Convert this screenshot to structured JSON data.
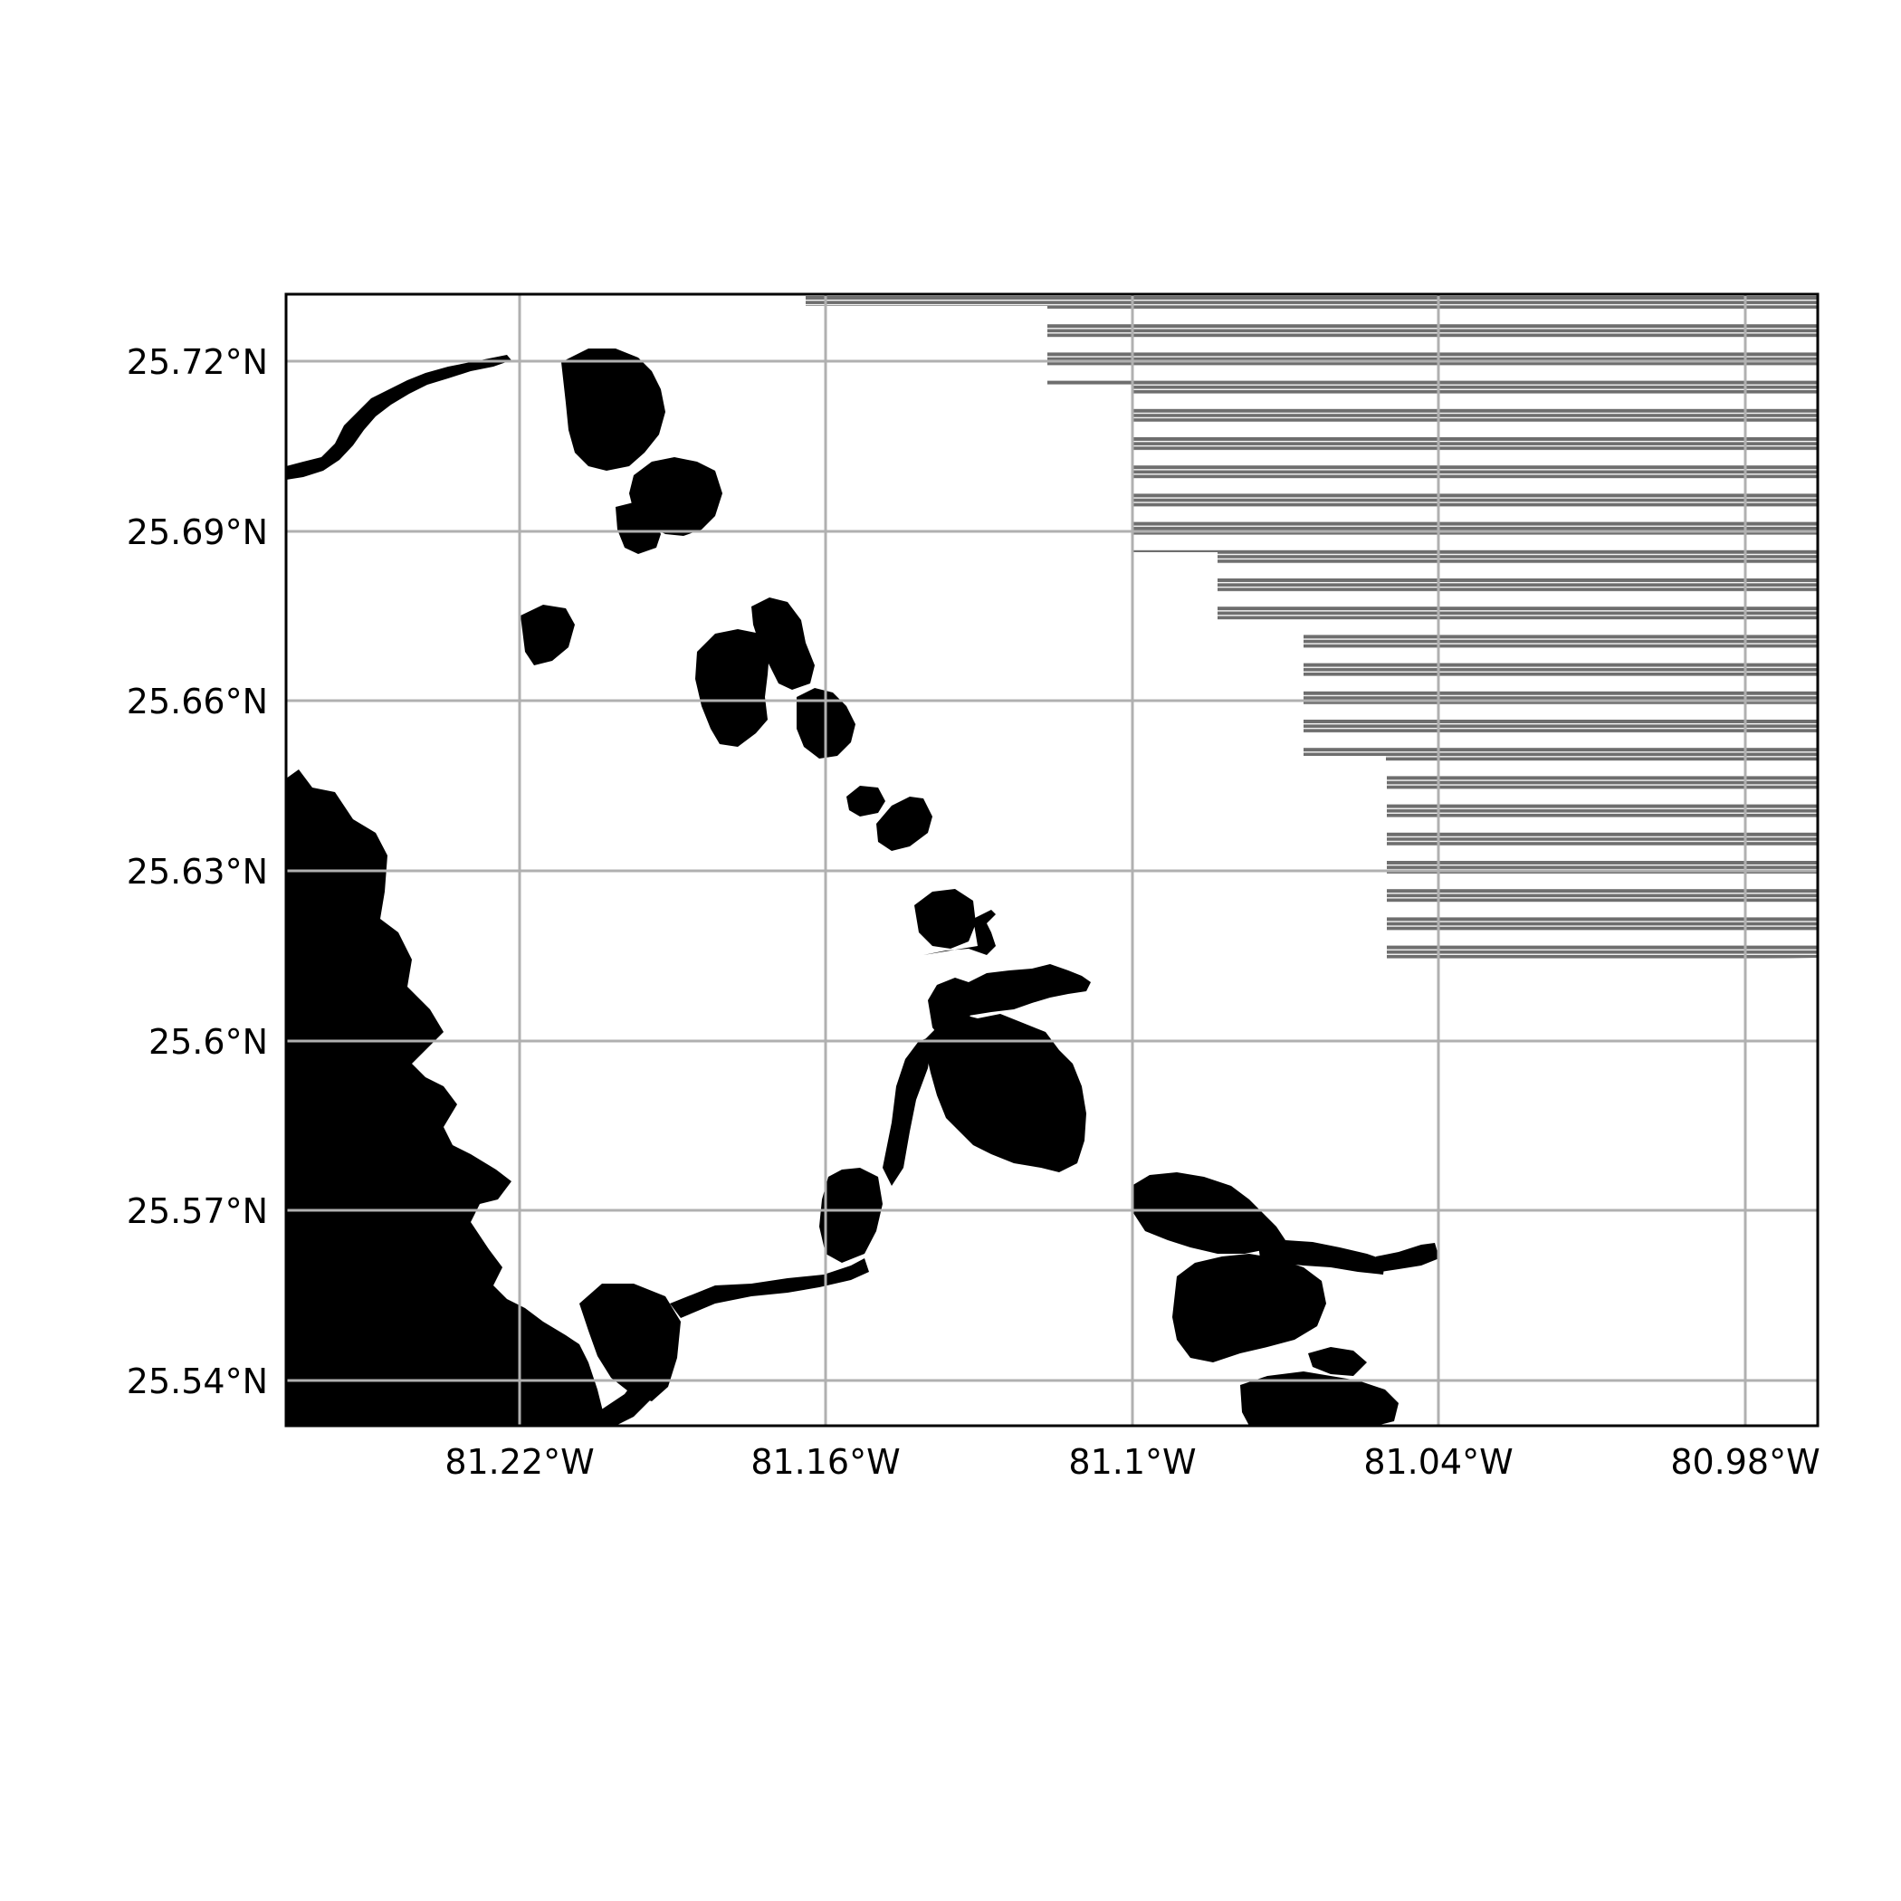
{
  "map": {
    "type": "map",
    "projection": "PlateCarree",
    "extent": {
      "lon_min": -81.2583,
      "lon_max": -80.9583,
      "lat_min": 25.532,
      "lat_max": 25.732
    },
    "gridlines": true,
    "colors": {
      "background": "#ffffff",
      "water": "#000000",
      "gridline": "#b0b0b0",
      "hatch_band": "#6e6e6e",
      "frame": "#000000"
    },
    "lat_ticks": [
      {
        "value": 25.72,
        "label": "25.72°N"
      },
      {
        "value": 25.69,
        "label": "25.69°N"
      },
      {
        "value": 25.66,
        "label": "25.66°N"
      },
      {
        "value": 25.63,
        "label": "25.63°N"
      },
      {
        "value": 25.6,
        "label": "25.6°N"
      },
      {
        "value": 25.57,
        "label": "25.57°N"
      },
      {
        "value": 25.54,
        "label": "25.54°N"
      }
    ],
    "lon_ticks": [
      {
        "value": -81.22,
        "label": "81.22°W"
      },
      {
        "value": -81.16,
        "label": "81.16°W"
      },
      {
        "value": -81.1,
        "label": "81.1°W"
      },
      {
        "value": -81.04,
        "label": "81.04°W"
      },
      {
        "value": -80.98,
        "label": "80.98°W"
      }
    ],
    "layers": [
      {
        "name": "coastal-water",
        "kind": "filled-polygons"
      },
      {
        "name": "bays-and-lakes",
        "kind": "filled-polygons"
      },
      {
        "name": "rivers-and-creeks",
        "kind": "lines"
      },
      {
        "name": "striped-coverage-area",
        "kind": "banded-raster"
      }
    ]
  }
}
